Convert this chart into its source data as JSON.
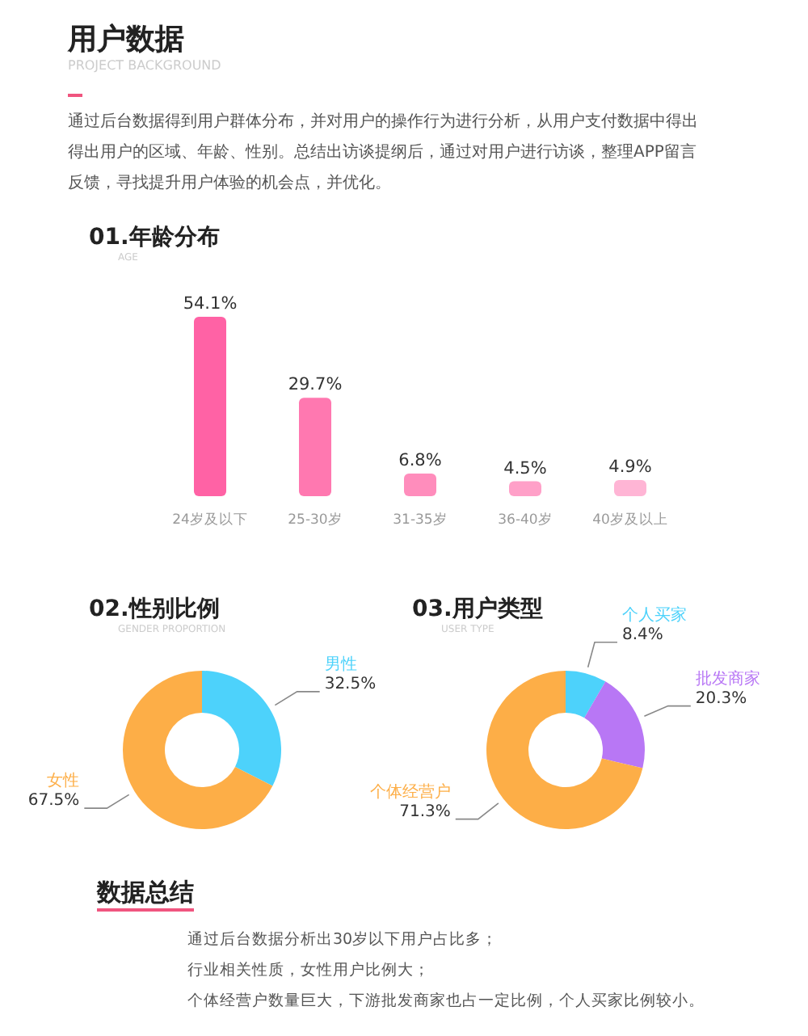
{
  "chart_data": [
    {
      "type": "other",
      "title": "用户数据",
      "subtitle": "PROJECT BACKGROUND",
      "annotations": [
        "通过后台数据得到用户群体分布，并对用户的操作行为进行分析，从用户支付数据中得出得出用户的区域、年龄、性别。总结出访谈提纲后，通过对用户进行访谈，整理APP留言反馈，寻找提升用户体验的机会点，并优化。"
      ]
    },
    {
      "type": "bar",
      "title": "01.年龄分布",
      "subtitle": "AGE",
      "categories": [
        "24岁及以下",
        "25-30岁",
        "31-35岁",
        "36-40岁",
        "40岁及以上"
      ],
      "values": [
        54.1,
        29.7,
        6.8,
        4.5,
        4.9
      ],
      "value_labels": [
        "54.1%",
        "29.7%",
        "6.8%",
        "4.5%",
        "4.9%"
      ],
      "colors": [
        "#ff62a5",
        "#ff78b0",
        "#ff8dbc",
        "#ffa0c8",
        "#ffb5d5"
      ]
    },
    {
      "type": "donut",
      "title": "02.性别比例",
      "subtitle": "GENDER PROPORTION",
      "categories": [
        "男性",
        "女性"
      ],
      "values": [
        32.5,
        67.5
      ],
      "value_labels": [
        "32.5%",
        "67.5%"
      ],
      "colors": [
        "#4dd2fb",
        "#fdae47"
      ]
    },
    {
      "type": "donut",
      "title": "03.用户类型",
      "subtitle": "USER TYPE",
      "categories": [
        "个人买家",
        "批发商家",
        "个体经营户"
      ],
      "values": [
        8.4,
        20.3,
        71.3
      ],
      "value_labels": [
        "8.4%",
        "20.3%",
        "71.3%"
      ],
      "colors": [
        "#4dd2fb",
        "#b877f5",
        "#fdae47"
      ]
    },
    {
      "type": "other",
      "title": "数据总结",
      "annotations": [
        "通过后台数据分析出30岁以下用户占比多；",
        "行业相关性质，女性用户比例大；",
        "个体经营户数量巨大，下游批发商家也占一定比例，个人买家比例较小。"
      ]
    }
  ]
}
